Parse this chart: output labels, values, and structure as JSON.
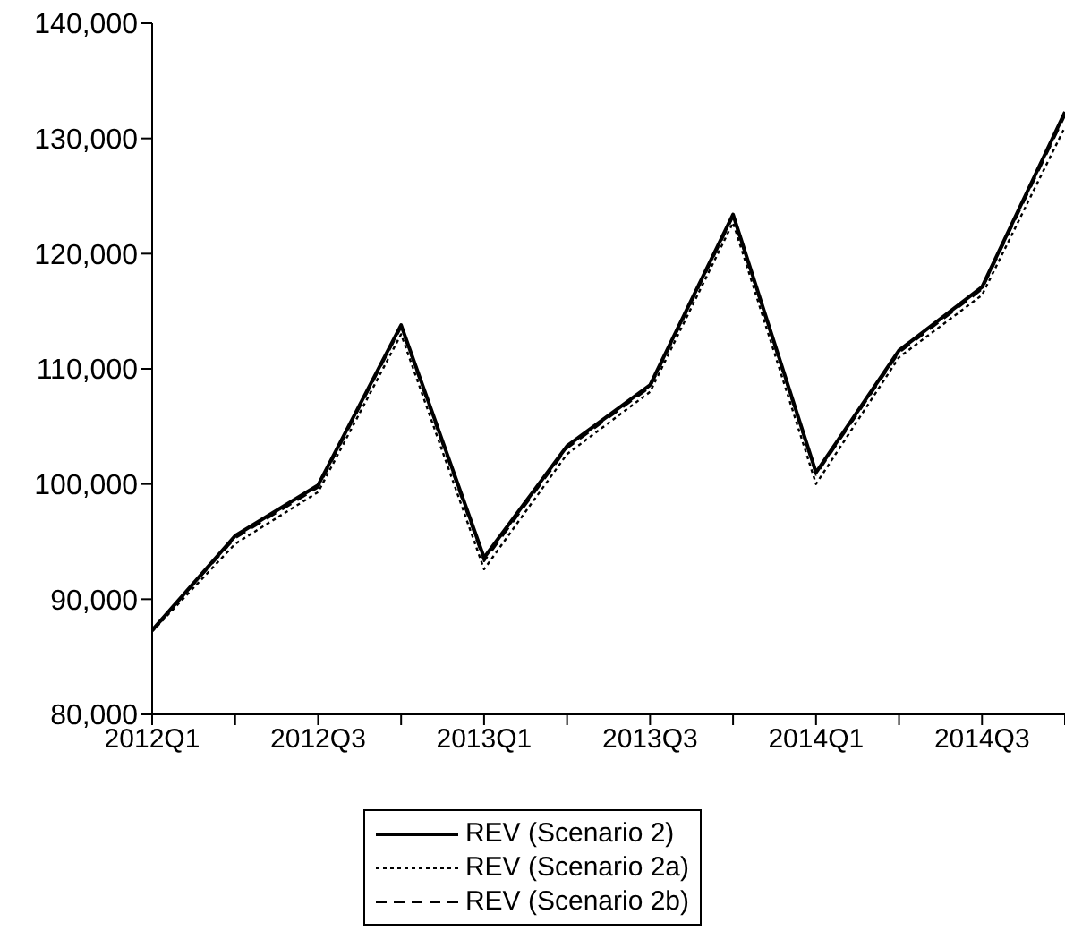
{
  "chart_data": {
    "type": "line",
    "categories": [
      "2012Q1",
      null,
      "2012Q3",
      null,
      "2013Q1",
      null,
      "2013Q3",
      null,
      "2014Q1",
      null,
      "2014Q3",
      null
    ],
    "series": [
      {
        "name": "REV (Scenario 2)",
        "color": "#000000",
        "line_style": "solid",
        "values": [
          87300,
          95500,
          99900,
          113800,
          93600,
          103300,
          108600,
          123400,
          101000,
          111600,
          117100,
          132300
        ]
      },
      {
        "name": "REV (Scenario 2a)",
        "color": "#000000",
        "line_style": "dotted",
        "values": [
          87200,
          94800,
          99300,
          113000,
          92600,
          102600,
          108000,
          122700,
          100000,
          111000,
          116400,
          131000
        ]
      },
      {
        "name": "REV (Scenario 2b)",
        "color": "#000000",
        "line_style": "dashed",
        "values": [
          87300,
          95300,
          99700,
          113600,
          93300,
          103100,
          108400,
          123200,
          100800,
          111400,
          116900,
          132000
        ]
      }
    ],
    "ylim": [
      80000,
      140000
    ],
    "yticks": [
      {
        "value": 80000,
        "label": "80,000"
      },
      {
        "value": 90000,
        "label": "90,000"
      },
      {
        "value": 100000,
        "label": "100,000"
      },
      {
        "value": 110000,
        "label": "110,000"
      },
      {
        "value": 120000,
        "label": "120,000"
      },
      {
        "value": 130000,
        "label": "130,000"
      },
      {
        "value": 140000,
        "label": "140,000"
      }
    ],
    "grid": false,
    "legend": "bottom",
    "marker": "none"
  }
}
